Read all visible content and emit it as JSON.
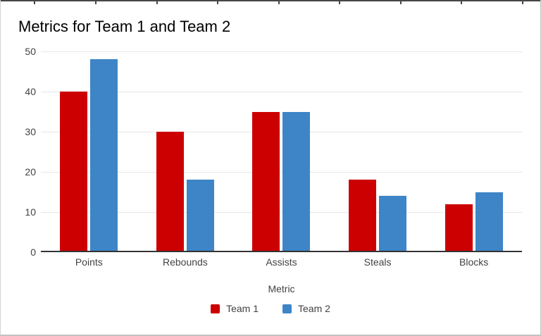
{
  "chart_data": {
    "type": "bar",
    "title": "Metrics for Team 1 and Team 2",
    "categories": [
      "Points",
      "Rebounds",
      "Assists",
      "Steals",
      "Blocks"
    ],
    "series": [
      {
        "name": "Team 1",
        "color": "#cc0000",
        "values": [
          40,
          30,
          35,
          18,
          12
        ]
      },
      {
        "name": "Team 2",
        "color": "#3d85c6",
        "values": [
          48,
          18,
          35,
          14,
          15
        ]
      }
    ],
    "xlabel": "Metric",
    "ylabel": "",
    "ylim": [
      0,
      50
    ],
    "yticks": [
      0,
      10,
      20,
      30,
      40,
      50
    ],
    "grid": true,
    "legend_position": "bottom"
  },
  "colors": {
    "team1": "#cc0000",
    "team2": "#3d85c6",
    "gridline": "#e6e6e6",
    "axis_line": "#333333",
    "sheet_edge": "#474747",
    "frame_border": "#c6c6c6",
    "text_primary": "#000000",
    "text_secondary": "#424242"
  }
}
